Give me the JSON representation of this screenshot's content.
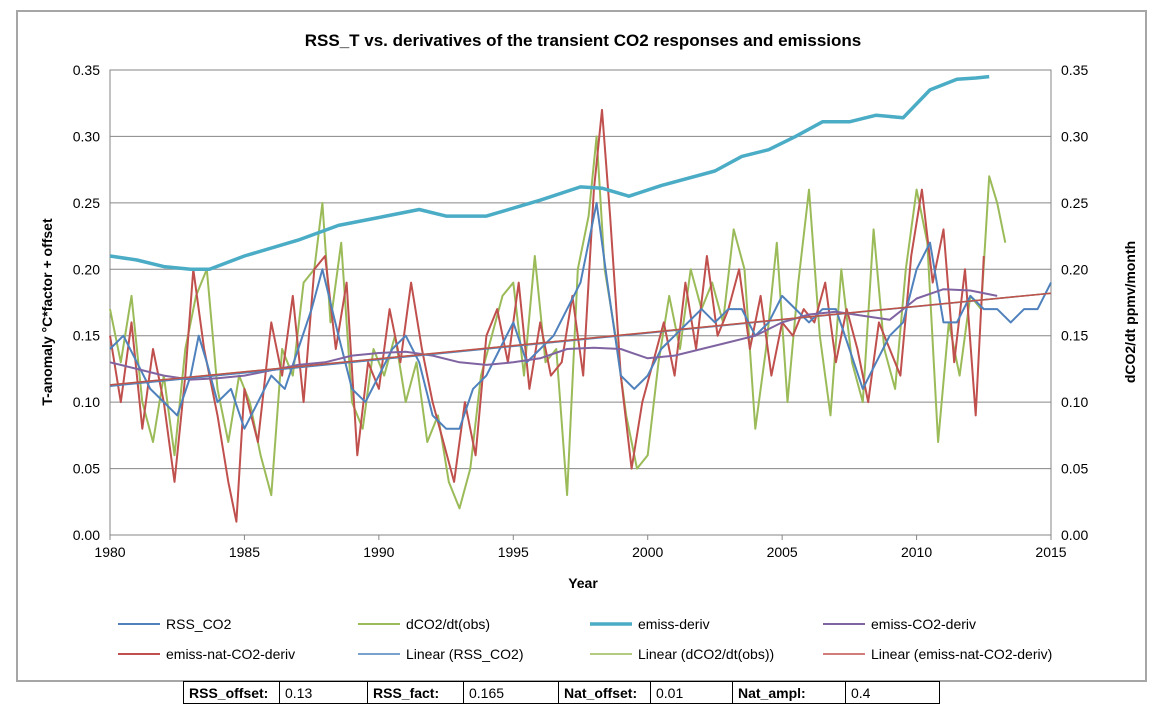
{
  "chart_data": {
    "type": "line",
    "title": "RSS_T vs. derivatives of the transient CO2 responses and emissions",
    "xlabel": "Year",
    "ylabel_left": "T-anomaly °C*factor + offset",
    "ylabel_right": "dCO2/dt ppmv/month",
    "xlim": [
      1980,
      2015
    ],
    "ylim": [
      0,
      0.35
    ],
    "x_ticks": [
      "1980",
      "1985",
      "1990",
      "1995",
      "2000",
      "2005",
      "2010",
      "2015"
    ],
    "y_ticks_left": [
      "0.00",
      "0.05",
      "0.10",
      "0.15",
      "0.20",
      "0.25",
      "0.30",
      "0.35"
    ],
    "y_ticks_right": [
      "0.00",
      "0.05",
      "0.10",
      "0.15",
      "0.20",
      "0.25",
      "0.30",
      "0.35"
    ],
    "grid": "horizontal",
    "legend_position": "bottom",
    "series": [
      {
        "name": "RSS_CO2",
        "color": "#4f81bd",
        "style": "thin",
        "x": [
          1980,
          1980.5,
          1981,
          1981.5,
          1982,
          1982.5,
          1983,
          1983.3,
          1983.6,
          1984,
          1984.5,
          1985,
          1985.5,
          1986,
          1986.5,
          1987,
          1987.5,
          1987.9,
          1988.5,
          1989,
          1989.5,
          1990,
          1990.5,
          1991,
          1991.5,
          1992,
          1992.5,
          1993,
          1993.5,
          1994,
          1994.5,
          1995,
          1995.5,
          1996,
          1996.5,
          1997,
          1997.5,
          1998.1,
          1998.5,
          1999,
          1999.5,
          2000,
          2000.5,
          2001,
          2001.5,
          2002,
          2002.5,
          2003,
          2003.5,
          2004,
          2004.5,
          2005,
          2005.5,
          2006,
          2006.5,
          2007,
          2007.5,
          2008,
          2008.5,
          2009,
          2009.5,
          2010,
          2010.5,
          2011,
          2011.5,
          2012,
          2012.5,
          2013,
          2013.5,
          2014,
          2014.5,
          2015
        ],
        "y": [
          0.14,
          0.15,
          0.13,
          0.11,
          0.1,
          0.09,
          0.12,
          0.15,
          0.13,
          0.1,
          0.11,
          0.08,
          0.1,
          0.12,
          0.11,
          0.14,
          0.17,
          0.2,
          0.15,
          0.11,
          0.1,
          0.12,
          0.14,
          0.15,
          0.13,
          0.09,
          0.08,
          0.08,
          0.11,
          0.12,
          0.14,
          0.16,
          0.13,
          0.14,
          0.15,
          0.17,
          0.19,
          0.25,
          0.19,
          0.12,
          0.11,
          0.12,
          0.14,
          0.15,
          0.16,
          0.17,
          0.16,
          0.17,
          0.17,
          0.15,
          0.16,
          0.18,
          0.17,
          0.16,
          0.17,
          0.17,
          0.14,
          0.11,
          0.13,
          0.15,
          0.16,
          0.2,
          0.22,
          0.16,
          0.16,
          0.18,
          0.17,
          0.17,
          0.16,
          0.17,
          0.17,
          0.19
        ]
      },
      {
        "name": "dCO2/dt(obs)",
        "color": "#9bbb59",
        "style": "thin",
        "x": [
          1980,
          1980.4,
          1980.8,
          1981.2,
          1981.6,
          1982,
          1982.4,
          1982.8,
          1983.2,
          1983.6,
          1984,
          1984.4,
          1984.8,
          1985.2,
          1985.6,
          1986,
          1986.4,
          1986.8,
          1987.2,
          1987.6,
          1987.9,
          1988.2,
          1988.6,
          1989,
          1989.4,
          1989.8,
          1990.2,
          1990.6,
          1991,
          1991.4,
          1991.8,
          1992.2,
          1992.6,
          1993,
          1993.4,
          1993.8,
          1994.2,
          1994.6,
          1995,
          1995.4,
          1995.8,
          1996.2,
          1996.6,
          1997,
          1997.4,
          1997.8,
          1998.1,
          1998.4,
          1998.8,
          1999.2,
          1999.6,
          2000,
          2000.4,
          2000.8,
          2001.2,
          2001.6,
          2002,
          2002.4,
          2002.8,
          2003.2,
          2003.6,
          2004,
          2004.4,
          2004.8,
          2005.2,
          2005.6,
          2006,
          2006.4,
          2006.8,
          2007.2,
          2007.6,
          2008,
          2008.4,
          2008.8,
          2009.2,
          2009.6,
          2010,
          2010.4,
          2010.8,
          2011.2,
          2011.6,
          2012,
          2012.4,
          2012.7,
          2013,
          2013.3
        ],
        "y": [
          0.17,
          0.13,
          0.18,
          0.1,
          0.07,
          0.12,
          0.06,
          0.14,
          0.18,
          0.2,
          0.11,
          0.07,
          0.12,
          0.1,
          0.06,
          0.03,
          0.14,
          0.12,
          0.19,
          0.2,
          0.25,
          0.16,
          0.22,
          0.1,
          0.08,
          0.14,
          0.12,
          0.15,
          0.1,
          0.13,
          0.07,
          0.09,
          0.04,
          0.02,
          0.05,
          0.12,
          0.15,
          0.18,
          0.19,
          0.12,
          0.21,
          0.13,
          0.14,
          0.03,
          0.2,
          0.24,
          0.3,
          0.2,
          0.15,
          0.09,
          0.05,
          0.06,
          0.13,
          0.18,
          0.14,
          0.2,
          0.17,
          0.19,
          0.16,
          0.23,
          0.2,
          0.08,
          0.14,
          0.22,
          0.1,
          0.19,
          0.26,
          0.15,
          0.09,
          0.2,
          0.13,
          0.1,
          0.23,
          0.14,
          0.11,
          0.2,
          0.26,
          0.22,
          0.07,
          0.16,
          0.12,
          0.18,
          0.17,
          0.27,
          0.25,
          0.22
        ]
      },
      {
        "name": "emiss-deriv",
        "color": "#4bacc6",
        "style": "thick",
        "x": [
          1980,
          1981,
          1982,
          1983,
          1983.7,
          1985,
          1987,
          1988.5,
          1990,
          1991.5,
          1992.5,
          1994,
          1996,
          1997.5,
          1998.3,
          1999.3,
          2000.5,
          2002.5,
          2003.5,
          2004.5,
          2005.5,
          2006.5,
          2007.5,
          2008.5,
          2009.5,
          2010.5,
          2011.5,
          2012.2,
          2012.7
        ],
        "y": [
          0.21,
          0.207,
          0.202,
          0.2,
          0.2,
          0.21,
          0.222,
          0.233,
          0.239,
          0.245,
          0.24,
          0.24,
          0.252,
          0.262,
          0.261,
          0.255,
          0.263,
          0.274,
          0.285,
          0.29,
          0.3,
          0.311,
          0.311,
          0.316,
          0.314,
          0.335,
          0.343,
          0.344,
          0.345
        ]
      },
      {
        "name": "emiss-CO2-deriv",
        "color": "#8064a2",
        "style": "thin",
        "x": [
          1980,
          1981,
          1982,
          1983,
          1984,
          1985,
          1986,
          1987,
          1988,
          1989,
          1990,
          1991,
          1992,
          1993,
          1994,
          1995,
          1996,
          1997,
          1998,
          1999,
          2000,
          2001,
          2002,
          2003,
          2004,
          2005,
          2006,
          2007,
          2008,
          2009,
          2010,
          2011,
          2012,
          2013
        ],
        "y": [
          0.13,
          0.125,
          0.12,
          0.117,
          0.118,
          0.12,
          0.124,
          0.128,
          0.13,
          0.135,
          0.137,
          0.138,
          0.135,
          0.13,
          0.128,
          0.13,
          0.133,
          0.14,
          0.141,
          0.14,
          0.133,
          0.135,
          0.14,
          0.145,
          0.15,
          0.16,
          0.166,
          0.168,
          0.165,
          0.162,
          0.178,
          0.185,
          0.184,
          0.18
        ]
      },
      {
        "name": "emiss-nat-CO2-deriv",
        "color": "#c0504d",
        "style": "thin",
        "x": [
          1980,
          1980.4,
          1980.8,
          1981.2,
          1981.6,
          1982,
          1982.4,
          1982.8,
          1983.1,
          1983.5,
          1984,
          1984.4,
          1984.7,
          1985,
          1985.5,
          1986,
          1986.4,
          1986.8,
          1987.2,
          1987.6,
          1988,
          1988.4,
          1988.8,
          1989.2,
          1989.6,
          1990,
          1990.4,
          1990.8,
          1991.2,
          1991.6,
          1992,
          1992.4,
          1992.8,
          1993.2,
          1993.6,
          1994,
          1994.4,
          1994.8,
          1995.2,
          1995.6,
          1996,
          1996.4,
          1996.8,
          1997.2,
          1997.6,
          1998,
          1998.3,
          1998.6,
          1999,
          1999.4,
          1999.8,
          2000.2,
          2000.6,
          2001,
          2001.4,
          2001.8,
          2002.2,
          2002.6,
          2003,
          2003.4,
          2003.8,
          2004.2,
          2004.6,
          2005,
          2005.4,
          2005.8,
          2006.2,
          2006.6,
          2007,
          2007.4,
          2007.8,
          2008.2,
          2008.6,
          2009,
          2009.4,
          2009.8,
          2010.2,
          2010.6,
          2011,
          2011.4,
          2011.8,
          2012.2,
          2012.5
        ],
        "y": [
          0.15,
          0.1,
          0.16,
          0.08,
          0.14,
          0.1,
          0.04,
          0.12,
          0.2,
          0.14,
          0.09,
          0.04,
          0.01,
          0.11,
          0.07,
          0.16,
          0.12,
          0.18,
          0.1,
          0.2,
          0.21,
          0.14,
          0.19,
          0.06,
          0.13,
          0.11,
          0.17,
          0.13,
          0.19,
          0.14,
          0.1,
          0.07,
          0.04,
          0.1,
          0.06,
          0.15,
          0.17,
          0.13,
          0.19,
          0.11,
          0.16,
          0.12,
          0.13,
          0.18,
          0.12,
          0.26,
          0.32,
          0.24,
          0.12,
          0.05,
          0.1,
          0.13,
          0.16,
          0.12,
          0.19,
          0.14,
          0.21,
          0.15,
          0.17,
          0.2,
          0.14,
          0.18,
          0.12,
          0.16,
          0.15,
          0.17,
          0.16,
          0.19,
          0.13,
          0.17,
          0.14,
          0.1,
          0.16,
          0.14,
          0.12,
          0.21,
          0.26,
          0.19,
          0.23,
          0.13,
          0.2,
          0.09,
          0.21
        ]
      },
      {
        "name": "Linear (RSS_CO2)",
        "color": "#4f81bd",
        "style": "trend",
        "x": [
          1980,
          2015
        ],
        "y": [
          0.112,
          0.182
        ]
      },
      {
        "name": "Linear (dCO2/dt(obs))",
        "color": "#9bbb59",
        "style": "trend",
        "x": [
          1980,
          2015
        ],
        "y": [
          0.113,
          0.182
        ]
      },
      {
        "name": "Linear (emiss-nat-CO2-deriv)",
        "color": "#c0504d",
        "style": "trend",
        "x": [
          1980,
          2015
        ],
        "y": [
          0.113,
          0.182
        ]
      }
    ]
  },
  "params": [
    {
      "label": "RSS_offset:",
      "value": "0.13"
    },
    {
      "label": "RSS_fact:",
      "value": "0.165"
    },
    {
      "label": "Nat_offset:",
      "value": "0.01"
    },
    {
      "label": "Nat_ampl:",
      "value": "0.4"
    }
  ]
}
